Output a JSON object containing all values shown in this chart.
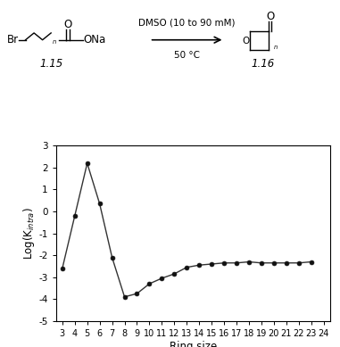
{
  "ring_sizes": [
    3,
    4,
    5,
    6,
    7,
    8,
    9,
    10,
    11,
    12,
    13,
    14,
    15,
    16,
    17,
    18,
    19,
    20,
    21,
    22,
    23
  ],
  "log_k": [
    -2.6,
    -0.2,
    2.2,
    0.35,
    -2.1,
    -3.9,
    -3.75,
    -3.3,
    -3.05,
    -2.85,
    -2.55,
    -2.45,
    -2.4,
    -2.35,
    -2.35,
    -2.3,
    -2.35,
    -2.35,
    -2.35,
    -2.35,
    -2.3
  ],
  "xlabel": "Ring size",
  "ylabel": "Log(K$_{intra}$)",
  "xlim": [
    2.5,
    24.5
  ],
  "ylim": [
    -5,
    3
  ],
  "xticks": [
    3,
    4,
    5,
    6,
    7,
    8,
    9,
    10,
    11,
    12,
    13,
    14,
    15,
    16,
    17,
    18,
    19,
    20,
    21,
    22,
    23,
    24
  ],
  "yticks": [
    -5,
    -4,
    -3,
    -2,
    -1,
    0,
    1,
    2,
    3
  ],
  "line_color": "#333333",
  "marker_color": "#111111",
  "marker_size": 3.5,
  "linewidth": 1.0,
  "fig_width": 3.81,
  "fig_height": 3.89,
  "dpi": 100,
  "scheme_label_15": "1.15",
  "scheme_label_16": "1.16",
  "arrow_text_top": "DMSO (10 to 90 mM)",
  "arrow_text_bot": "50 °C"
}
